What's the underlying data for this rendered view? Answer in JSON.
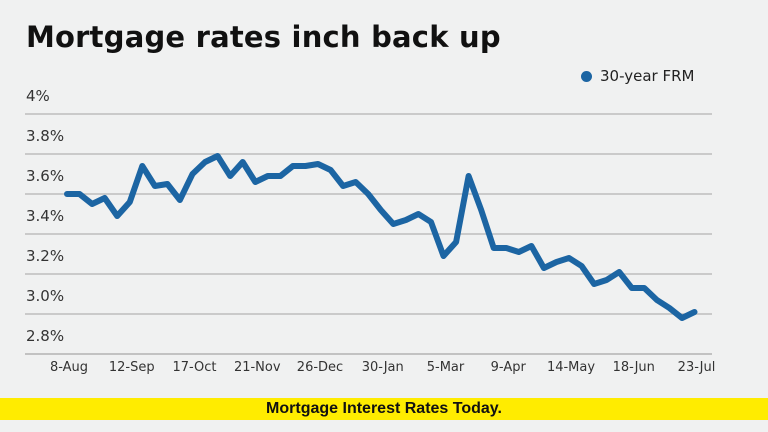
{
  "title": "Mortgage rates inch back up",
  "legend": {
    "label": "30-year FRM",
    "color": "#1c65a3"
  },
  "banner": {
    "text": "Mortgage Interest Rates Today.",
    "color": "#ffec00"
  },
  "y_labels": [
    "4%",
    "3.8%",
    "3.6%",
    "3.4%",
    "3.2%",
    "3.0%",
    "2.8%"
  ],
  "x_labels": [
    "8-Aug",
    "12-Sep",
    "17-Oct",
    "21-Nov",
    "26-Dec",
    "30-Jan",
    "5-Mar",
    "9-Apr",
    "14-May",
    "18-Jun",
    "23-Jul"
  ],
  "chart_data": {
    "type": "line",
    "title": "Mortgage rates inch back up",
    "xlabel": "",
    "ylabel": "",
    "ylim": [
      2.8,
      4.0
    ],
    "yticks": [
      4.0,
      3.8,
      3.6,
      3.4,
      3.2,
      3.0,
      2.8
    ],
    "grid": true,
    "legend_position": "top-right",
    "x_tick_labels": [
      "8-Aug",
      "12-Sep",
      "17-Oct",
      "21-Nov",
      "26-Dec",
      "30-Jan",
      "5-Mar",
      "9-Apr",
      "14-May",
      "18-Jun",
      "23-Jul"
    ],
    "x_tick_indices": [
      0,
      5,
      10,
      15,
      20,
      25,
      30,
      35,
      40,
      45,
      50
    ],
    "series": [
      {
        "name": "30-year FRM",
        "color": "#1c65a3",
        "values": [
          3.6,
          3.6,
          3.55,
          3.58,
          3.49,
          3.56,
          3.74,
          3.64,
          3.65,
          3.57,
          3.7,
          3.76,
          3.79,
          3.69,
          3.76,
          3.66,
          3.69,
          3.69,
          3.74,
          3.74,
          3.75,
          3.72,
          3.64,
          3.66,
          3.6,
          3.52,
          3.45,
          3.47,
          3.5,
          3.46,
          3.29,
          3.36,
          3.69,
          3.52,
          3.33,
          3.33,
          3.31,
          3.34,
          3.23,
          3.26,
          3.28,
          3.24,
          3.15,
          3.17,
          3.21,
          3.13,
          3.13,
          3.07,
          3.03,
          2.98,
          3.01
        ]
      }
    ]
  }
}
